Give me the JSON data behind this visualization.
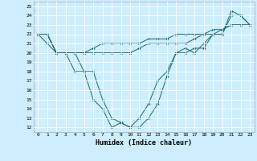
{
  "xlabel": "Humidex (Indice chaleur)",
  "bg_color": "#cceeff",
  "line_color": "#1a6b6b",
  "grid_color": "#ffffff",
  "xlim": [
    -0.5,
    23.5
  ],
  "ylim": [
    11.5,
    25.5
  ],
  "xticks": [
    0,
    1,
    2,
    3,
    4,
    5,
    6,
    7,
    8,
    9,
    10,
    11,
    12,
    13,
    14,
    15,
    16,
    17,
    18,
    19,
    20,
    21,
    22,
    23
  ],
  "yticks": [
    12,
    13,
    14,
    15,
    16,
    17,
    18,
    19,
    20,
    21,
    22,
    23,
    24,
    25
  ],
  "line1_x": [
    0,
    1,
    2,
    3,
    4,
    5,
    6,
    7,
    8,
    9,
    10,
    11,
    12,
    13,
    14,
    15,
    16,
    17,
    18,
    19,
    20,
    21,
    22,
    23
  ],
  "line1_y": [
    22,
    21,
    20,
    20,
    18,
    18,
    15,
    14,
    12,
    12.5,
    12,
    13,
    14.5,
    17,
    18,
    20,
    20,
    20.5,
    20.5,
    22,
    22,
    24,
    24,
    23
  ],
  "line2_x": [
    0,
    1,
    2,
    3,
    4,
    5,
    6,
    7,
    8,
    9,
    10,
    11,
    12,
    13,
    14,
    15,
    16,
    17,
    18,
    19,
    20,
    21,
    22,
    23
  ],
  "line2_y": [
    22,
    22,
    20,
    20,
    20,
    18,
    18,
    15,
    13,
    12.5,
    12,
    12,
    13,
    14.5,
    17.5,
    20,
    20.5,
    20,
    21,
    22,
    22,
    24.5,
    24,
    23
  ],
  "line3_x": [
    0,
    1,
    2,
    3,
    4,
    5,
    6,
    7,
    8,
    9,
    10,
    11,
    12,
    13,
    14,
    15,
    16,
    17,
    18,
    19,
    20,
    21,
    22,
    23
  ],
  "line3_y": [
    22,
    22,
    20,
    20,
    20,
    20,
    20,
    20,
    20,
    20,
    20,
    20.5,
    21,
    21,
    21,
    21,
    21,
    21.5,
    22,
    22,
    22.5,
    23,
    23,
    23
  ],
  "line4_x": [
    0,
    1,
    2,
    3,
    4,
    5,
    6,
    7,
    8,
    9,
    10,
    11,
    12,
    13,
    14,
    15,
    16,
    17,
    18,
    19,
    20,
    21,
    22,
    23
  ],
  "line4_y": [
    22,
    22,
    20,
    20,
    20,
    20,
    20.5,
    21,
    21,
    21,
    21,
    21,
    21.5,
    21.5,
    21.5,
    22,
    22,
    22,
    22,
    22.5,
    22.5,
    23,
    23,
    23
  ]
}
